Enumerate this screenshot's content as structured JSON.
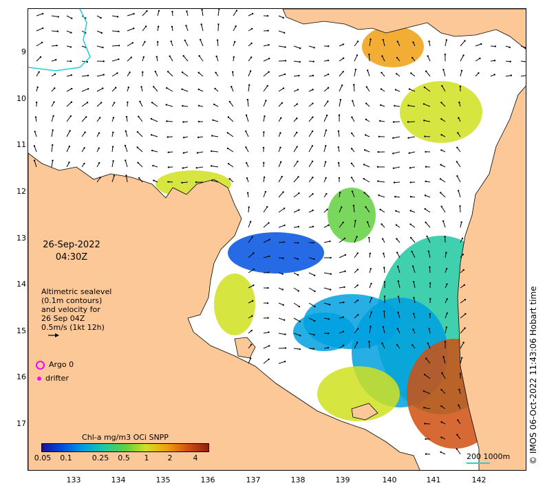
{
  "map": {
    "date": "26-Sep-2022",
    "time": "04:30Z",
    "sealevel_legend": [
      "Altimetric sealevel",
      "(0.1m contours)",
      "and velocity for",
      "26 Sep 04Z",
      "0.5m/s (1kt 12h)"
    ],
    "argo_label": "Argo 0",
    "drifter_label": "drifter",
    "colorbar": {
      "title": "Chl-a mg/m3 OCi SNPP",
      "ticks": [
        "0.05",
        "0.1",
        "0.25",
        "0.5",
        "1",
        "2",
        "4"
      ],
      "colors": [
        "#1a0fa0",
        "#0050e0",
        "#00a0e0",
        "#20c8a0",
        "#60d040",
        "#d0e020",
        "#f0a010",
        "#d05010",
        "#902010"
      ]
    },
    "scale": {
      "label": "200 1000m"
    },
    "credit": "© IMOS 06-Oct-2022 11:43:06 Hobart time",
    "y_ticks": [
      "9",
      "10",
      "11",
      "12",
      "13",
      "14",
      "15",
      "16",
      "17"
    ],
    "x_ticks": [
      "133",
      "134",
      "135",
      "136",
      "137",
      "138",
      "139",
      "140",
      "141",
      "142"
    ],
    "colors": {
      "land": "#fcc898",
      "ocean": "#ffffff",
      "coastline": "#000000",
      "contour": "#20d0d0"
    }
  }
}
